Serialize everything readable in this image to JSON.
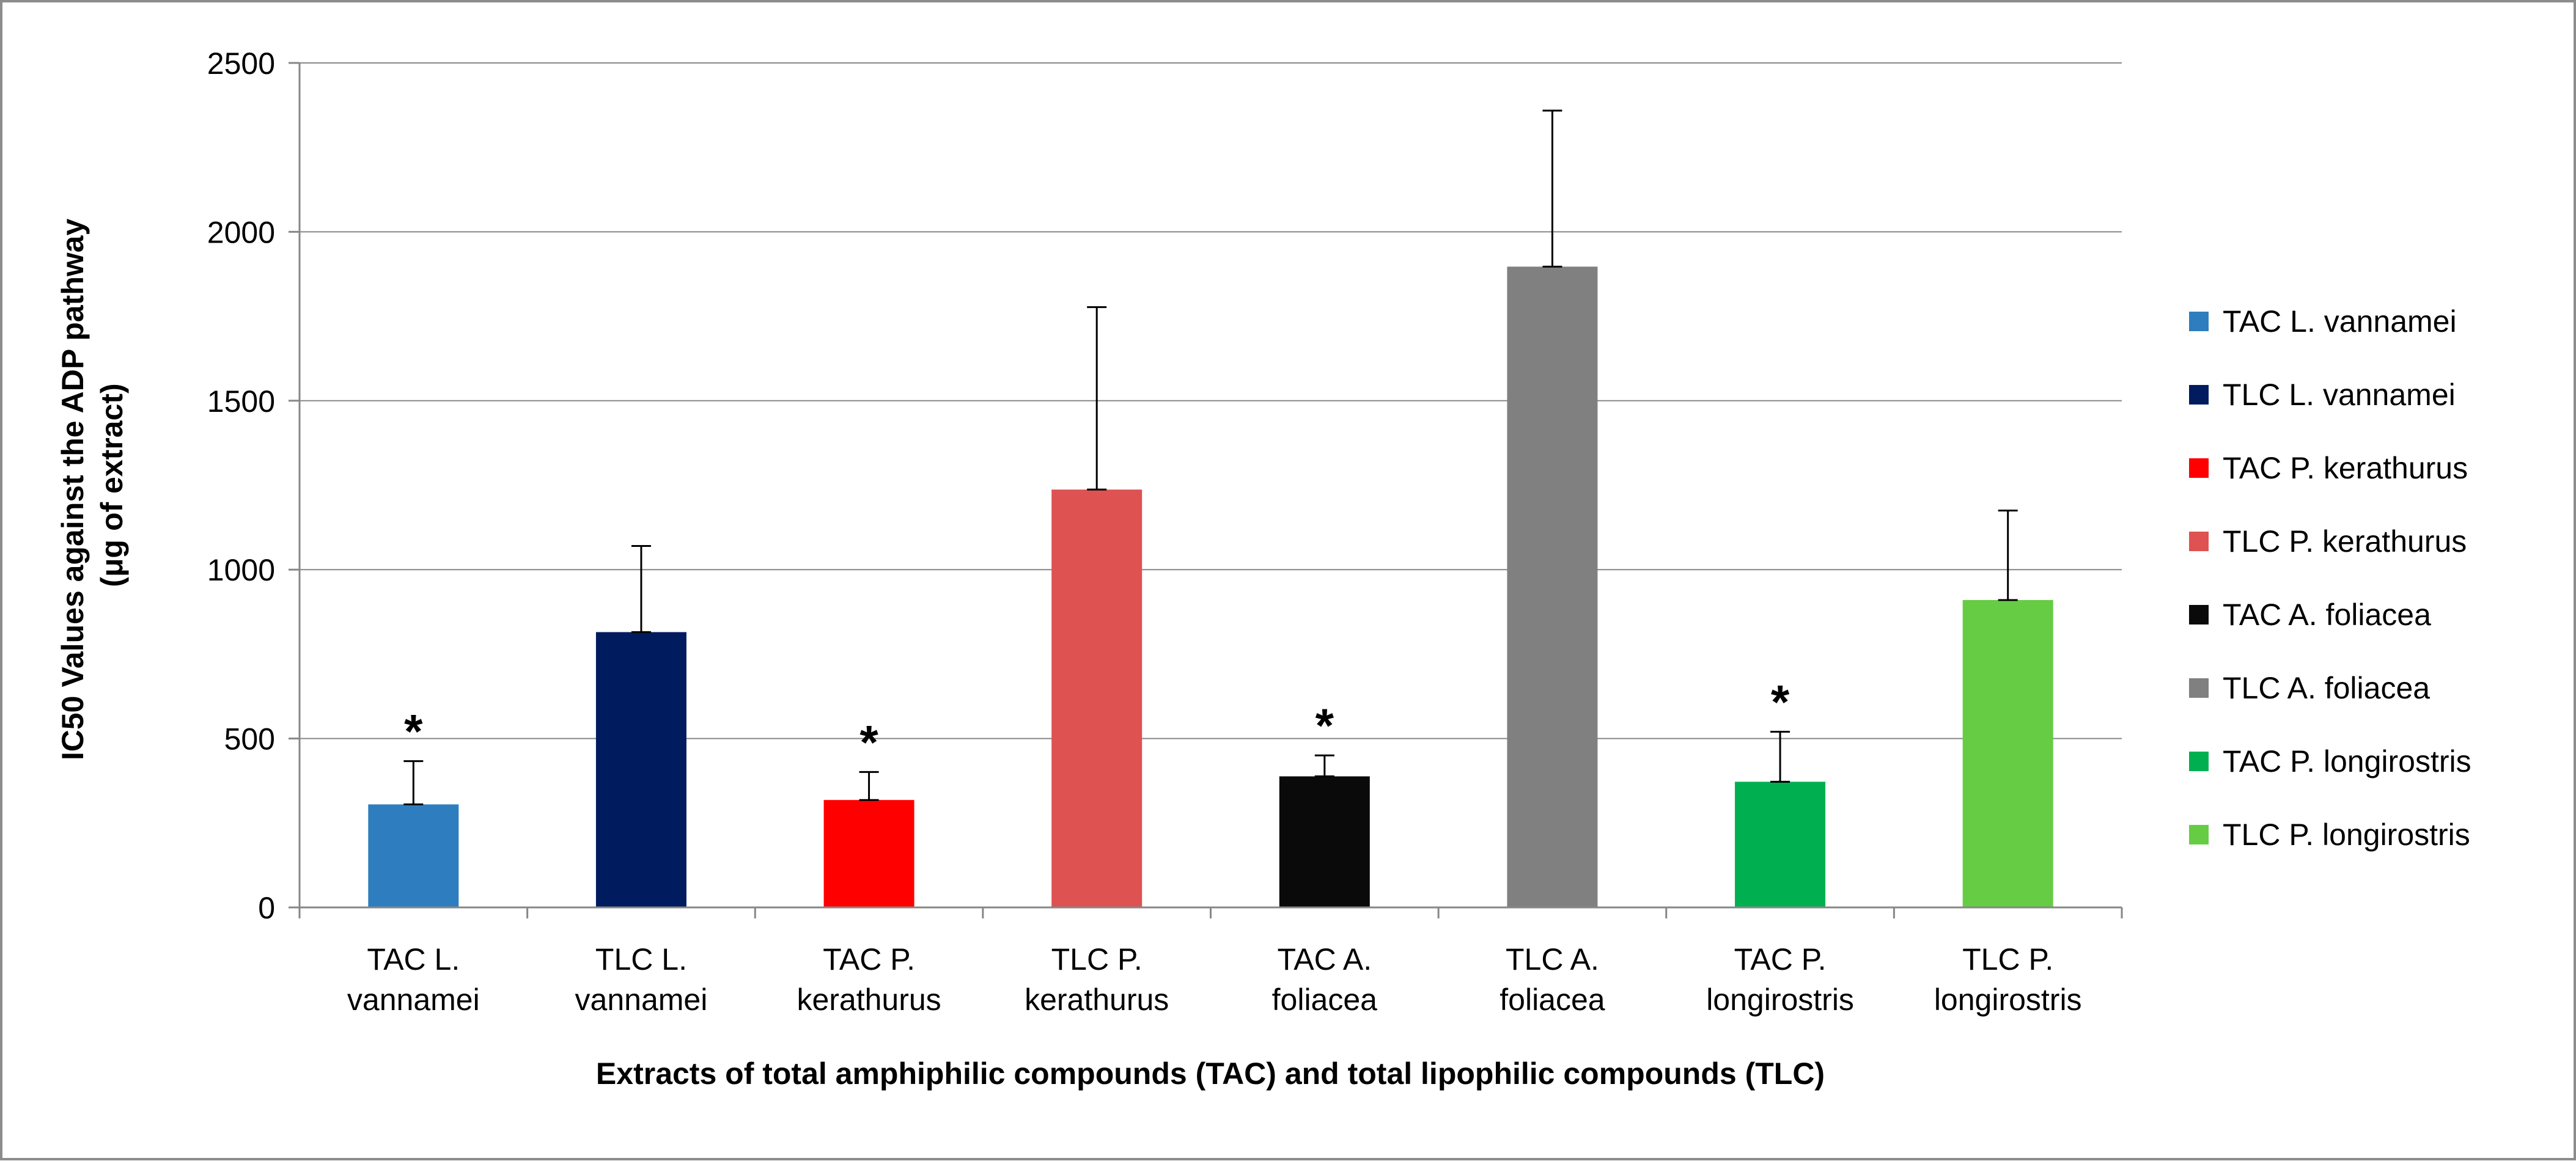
{
  "chart_data": {
    "type": "bar",
    "title": "",
    "categories": [
      [
        "TAC L.",
        "vannamei"
      ],
      [
        "TLC L.",
        "vannamei"
      ],
      [
        "TAC P.",
        "kerathurus"
      ],
      [
        "TLC P.",
        "kerathurus"
      ],
      [
        "TAC A.",
        "foliacea"
      ],
      [
        "TLC A.",
        "foliacea"
      ],
      [
        "TAC P.",
        "longirostris"
      ],
      [
        "TLC P.",
        "longirostris"
      ]
    ],
    "values": [
      305,
      815,
      318,
      1237,
      388,
      1897,
      372,
      910
    ],
    "errors": [
      128,
      255,
      83,
      540,
      62,
      462,
      148,
      265
    ],
    "significance": [
      "*",
      "",
      "*",
      "",
      "*",
      "",
      "*",
      ""
    ],
    "colors": [
      "#2e7ebf",
      "#001c5e",
      "#ff0000",
      "#de5252",
      "#0a0a0a",
      "#808080",
      "#00b050",
      "#66cc44"
    ],
    "legend": [
      "TAC L. vannamei",
      "TLC L. vannamei",
      "TAC P. kerathurus",
      "TLC P. kerathurus",
      "TAC A. foliacea",
      "TLC A. foliacea",
      "TAC P. longirostris",
      "TLC P. longirostris"
    ],
    "ylabel": [
      "IC50 Values against the ADP pathway",
      "(μg of extract)"
    ],
    "xlabel": "Extracts of total amphiphilic compounds (TAC) and total lipophilic compounds (TLC)",
    "ylim": [
      0,
      2500
    ],
    "yticks": [
      0,
      500,
      1000,
      1500,
      2000,
      2500
    ],
    "grid": true,
    "legend_position": "right"
  }
}
